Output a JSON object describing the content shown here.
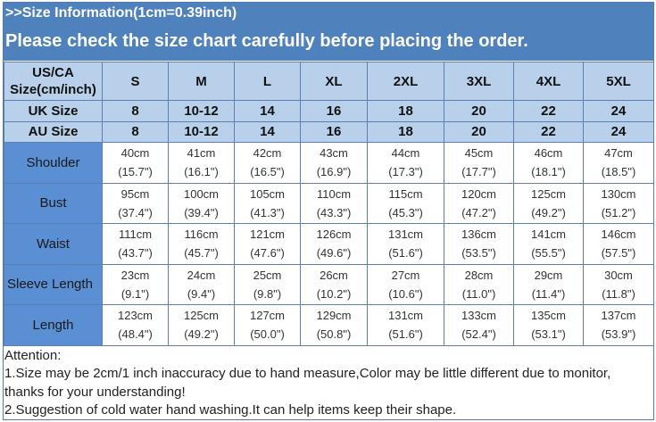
{
  "header": {
    "line1": ">>Size Information(1cm=0.39inch)",
    "line2": "Please check the size chart carefully before placing the order."
  },
  "table": {
    "corner": [
      "US/CA",
      "Size(cm/inch)"
    ],
    "sizes": [
      "S",
      "M",
      "L",
      "XL",
      "2XL",
      "3XL",
      "4XL",
      "5XL"
    ],
    "uk": {
      "label": "UK Size",
      "values": [
        "8",
        "10-12",
        "14",
        "16",
        "18",
        "20",
        "22",
        "24"
      ]
    },
    "au": {
      "label": "AU Size",
      "values": [
        "8",
        "10-12",
        "14",
        "16",
        "18",
        "20",
        "22",
        "24"
      ]
    },
    "rows": [
      {
        "label": "Shoulder",
        "cm": [
          "40cm",
          "41cm",
          "42cm",
          "43cm",
          "44cm",
          "45cm",
          "46cm",
          "47cm"
        ],
        "inch": [
          "(15.7\")",
          "(16.1\")",
          "(16.5\")",
          "(16.9\")",
          "(17.3\")",
          "(17.7\")",
          "(18.1\")",
          "(18.5\")"
        ]
      },
      {
        "label": "Bust",
        "cm": [
          "95cm",
          "100cm",
          "105cm",
          "110cm",
          "115cm",
          "120cm",
          "125cm",
          "130cm"
        ],
        "inch": [
          "(37.4\")",
          "(39.4\")",
          "(41.3\")",
          "(43.3\")",
          "(45.3\")",
          "(47.2\")",
          "(49.2\")",
          "(51.2\")"
        ]
      },
      {
        "label": "Waist",
        "cm": [
          "111cm",
          "116cm",
          "121cm",
          "126cm",
          "131cm",
          "136cm",
          "141cm",
          "146cm"
        ],
        "inch": [
          "(43.7\")",
          "(45.7\")",
          "(47.6\")",
          "(49.6\")",
          "(51.6\")",
          "(53.5\")",
          "(55.5\")",
          "(57.5\")"
        ]
      },
      {
        "label": "Sleeve Length",
        "cm": [
          "23cm",
          "24cm",
          "25cm",
          "26cm",
          "27cm",
          "28cm",
          "29cm",
          "30cm"
        ],
        "inch": [
          "(9.1\")",
          "(9.4\")",
          "(9.8\")",
          "(10.2\")",
          "(10.6\")",
          "(11.0\")",
          "(11.4\")",
          "(11.8\")"
        ]
      },
      {
        "label": "Length",
        "cm": [
          "123cm",
          "125cm",
          "127cm",
          "129cm",
          "131cm",
          "133cm",
          "135cm",
          "137cm"
        ],
        "inch": [
          "(48.4\")",
          "(49.2\")",
          "(50.0\")",
          "(50.8\")",
          "(51.6\")",
          "(52.4\")",
          "(53.1\")",
          "(53.9\")"
        ]
      }
    ]
  },
  "notes": {
    "title": "Attention:",
    "items": [
      "1.Size may be 2cm/1 inch inaccuracy due to hand measure,Color may be little different due to monitor, thanks for your understanding!",
      "2.Suggestion of cold water hand washing.It can help items keep their shape."
    ]
  },
  "colors": {
    "banner": "#4f81bd",
    "header_cells": "#b8d0ea",
    "label_cells": "#5b8fd4"
  }
}
